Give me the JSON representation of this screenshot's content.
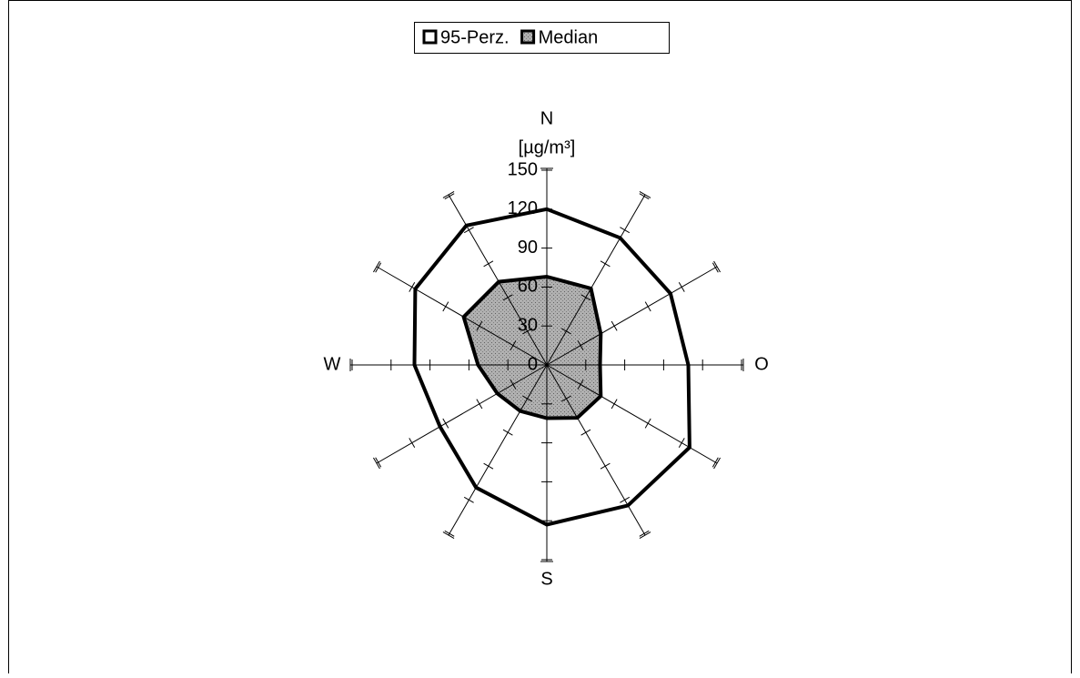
{
  "chart_data": {
    "type": "radar",
    "categories": [
      "N",
      null,
      null,
      "O",
      null,
      null,
      "S",
      null,
      null,
      "W",
      null,
      null
    ],
    "unit_label": "[µg/m³]",
    "series": [
      {
        "name": "95-Perz.",
        "color": "#ffffff",
        "values": [
          120,
          113,
          110,
          109,
          127,
          125,
          123,
          109,
          95,
          102,
          117,
          124
        ]
      },
      {
        "name": "Median",
        "color": "#a6a6a6",
        "values": [
          68,
          68,
          48,
          41,
          48,
          47,
          41,
          41,
          44,
          53,
          74,
          74
        ]
      }
    ],
    "ylim": [
      0,
      150
    ],
    "yticks": [
      0,
      30,
      60,
      90,
      120,
      150
    ],
    "legend": "top"
  }
}
